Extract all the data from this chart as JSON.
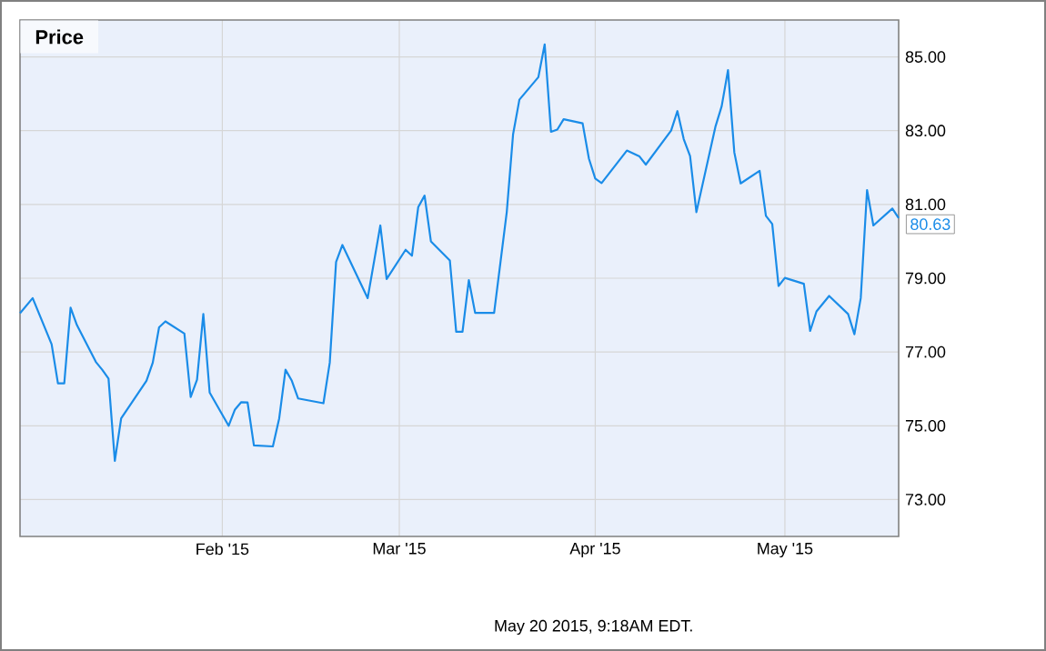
{
  "chart_data": {
    "type": "line",
    "title": "Price",
    "color": "#1a8ce8",
    "grid": true,
    "xlim": [
      "2014-12-31",
      "2015-05-19"
    ],
    "ylim": [
      72,
      86
    ],
    "xticks": [
      {
        "value": "2015-02-01",
        "label": "Feb '15"
      },
      {
        "value": "2015-03-01",
        "label": "Mar '15"
      },
      {
        "value": "2015-04-01",
        "label": "Apr '15"
      },
      {
        "value": "2015-05-01",
        "label": "May '15"
      }
    ],
    "yticks": [
      {
        "value": 73,
        "label": "73.00"
      },
      {
        "value": 75,
        "label": "75.00"
      },
      {
        "value": 77,
        "label": "77.00"
      },
      {
        "value": 79,
        "label": "79.00"
      },
      {
        "value": 81,
        "label": "81.00"
      },
      {
        "value": 83,
        "label": "83.00"
      },
      {
        "value": 85,
        "label": "85.00"
      }
    ],
    "x": [
      "2014-12-31",
      "2015-01-02",
      "2015-01-05",
      "2015-01-06",
      "2015-01-07",
      "2015-01-08",
      "2015-01-09",
      "2015-01-12",
      "2015-01-13",
      "2015-01-14",
      "2015-01-15",
      "2015-01-16",
      "2015-01-20",
      "2015-01-21",
      "2015-01-22",
      "2015-01-23",
      "2015-01-26",
      "2015-01-27",
      "2015-01-28",
      "2015-01-29",
      "2015-01-30",
      "2015-02-02",
      "2015-02-03",
      "2015-02-04",
      "2015-02-05",
      "2015-02-06",
      "2015-02-09",
      "2015-02-10",
      "2015-02-11",
      "2015-02-12",
      "2015-02-13",
      "2015-02-17",
      "2015-02-18",
      "2015-02-19",
      "2015-02-20",
      "2015-02-24",
      "2015-02-26",
      "2015-02-27",
      "2015-03-02",
      "2015-03-03",
      "2015-03-04",
      "2015-03-05",
      "2015-03-06",
      "2015-03-09",
      "2015-03-10",
      "2015-03-11",
      "2015-03-12",
      "2015-03-13",
      "2015-03-16",
      "2015-03-18",
      "2015-03-19",
      "2015-03-20",
      "2015-03-23",
      "2015-03-24",
      "2015-03-25",
      "2015-03-26",
      "2015-03-27",
      "2015-03-30",
      "2015-03-31",
      "2015-04-01",
      "2015-04-02",
      "2015-04-06",
      "2015-04-08",
      "2015-04-09",
      "2015-04-13",
      "2015-04-14",
      "2015-04-15",
      "2015-04-16",
      "2015-04-17",
      "2015-04-20",
      "2015-04-21",
      "2015-04-22",
      "2015-04-23",
      "2015-04-24",
      "2015-04-27",
      "2015-04-28",
      "2015-04-29",
      "2015-04-30",
      "2015-05-01",
      "2015-05-04",
      "2015-05-05",
      "2015-05-06",
      "2015-05-08",
      "2015-05-11",
      "2015-05-12",
      "2015-05-13",
      "2015-05-14",
      "2015-05-15",
      "2015-05-18",
      "2015-05-19"
    ],
    "values": [
      78.05,
      78.46,
      77.21,
      76.15,
      76.15,
      78.2,
      77.73,
      76.73,
      76.52,
      76.28,
      74.05,
      75.2,
      76.22,
      76.71,
      77.67,
      77.83,
      77.5,
      75.78,
      76.25,
      78.03,
      75.9,
      75.0,
      75.44,
      75.64,
      75.63,
      74.47,
      74.44,
      75.2,
      76.52,
      76.22,
      75.74,
      75.61,
      76.71,
      79.44,
      79.9,
      78.46,
      80.43,
      78.98,
      79.77,
      79.61,
      80.93,
      81.24,
      80.0,
      79.48,
      77.55,
      77.55,
      78.95,
      78.06,
      78.06,
      80.79,
      82.9,
      83.84,
      84.45,
      85.34,
      82.97,
      83.03,
      83.31,
      83.2,
      82.24,
      81.7,
      81.58,
      82.46,
      82.3,
      82.08,
      83.0,
      83.53,
      82.77,
      82.31,
      80.79,
      83.1,
      83.66,
      84.64,
      82.41,
      81.57,
      81.91,
      80.69,
      80.47,
      78.79,
      79.01,
      78.85,
      77.57,
      78.1,
      78.52,
      78.03,
      77.48,
      78.46,
      81.39,
      80.43,
      80.89,
      80.63
    ],
    "annotations": [
      "May 20 2015, 9:18AM EDT.",
      {
        "text": "80.63",
        "x": "2015-05-19",
        "y": 80.63
      }
    ]
  }
}
